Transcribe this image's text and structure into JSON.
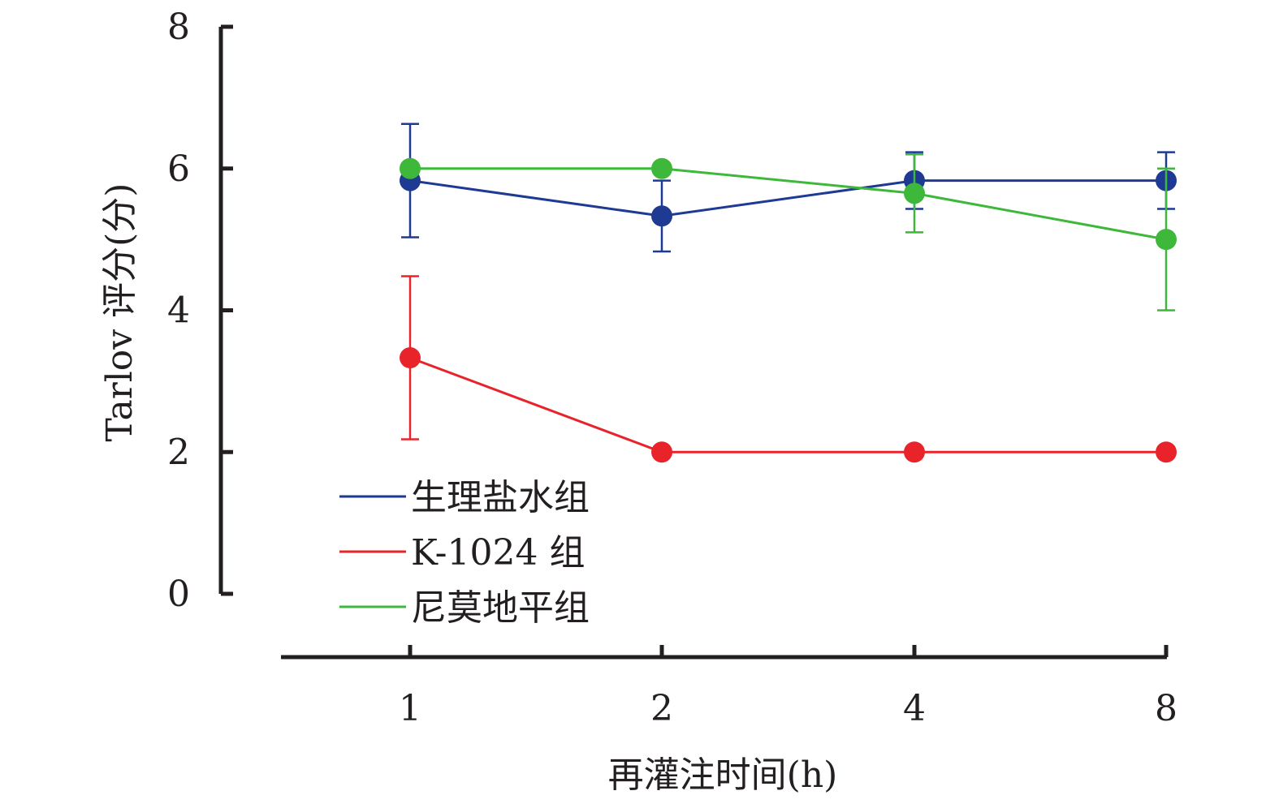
{
  "chart_data": {
    "type": "line",
    "title": "",
    "xlabel": "再灌注时间(h)",
    "ylabel": "Tarlov 评分(分)",
    "categories": [
      "1",
      "2",
      "4",
      "8"
    ],
    "yticks": [
      "0",
      "2",
      "4",
      "6",
      "8"
    ],
    "ylim": [
      0,
      8
    ],
    "grid": false,
    "legend_position": "bottom-left",
    "series": [
      {
        "name": "生理盐水组",
        "color": "#1f3a93",
        "values": [
          5.83,
          5.33,
          5.83,
          5.83
        ],
        "errors": [
          0.8,
          0.5,
          0.4,
          0.4
        ]
      },
      {
        "name": "K-1024 组",
        "color": "#e8242a",
        "values": [
          3.33,
          2.0,
          2.0,
          2.0
        ],
        "errors": [
          1.15,
          0,
          0,
          0
        ]
      },
      {
        "name": "尼莫地平组",
        "color": "#3db83a",
        "values": [
          6.0,
          6.0,
          5.65,
          5.0
        ],
        "errors": [
          0,
          0,
          0.55,
          1.0
        ]
      }
    ]
  }
}
